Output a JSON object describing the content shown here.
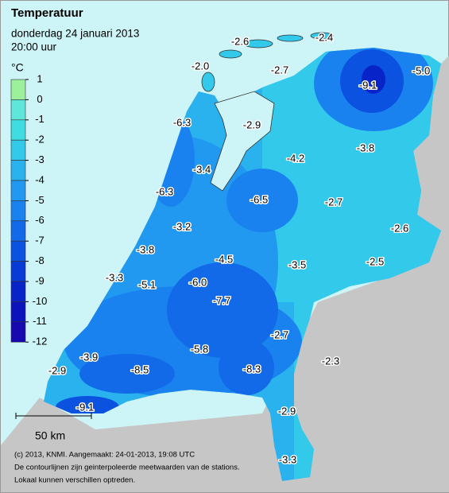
{
  "header": {
    "title": "Temperatuur",
    "date": "donderdag 24 januari 2013",
    "time": "20:00 uur"
  },
  "legend": {
    "unit": "°C",
    "ticks": [
      "1",
      "0",
      "-1",
      "-2",
      "-3",
      "-4",
      "-5",
      "-6",
      "-7",
      "-8",
      "-9",
      "-10",
      "-11",
      "-12"
    ],
    "colors": [
      "#9cf09c",
      "#5fe6da",
      "#3fdde2",
      "#32c9ea",
      "#2ab2ee",
      "#2299f0",
      "#1a82ef",
      "#126ae8",
      "#0c52e0",
      "#083ad6",
      "#0824c8",
      "#0c12bc",
      "#1808b0"
    ]
  },
  "stations": [
    "-2.6",
    "-2.4",
    "-2.0",
    "-2.7",
    "-9.1",
    "-5.0",
    "-6.3",
    "-2.9",
    "-3.8",
    "-4.2",
    "-3.4",
    "-6.3",
    "-6.5",
    "-2.7",
    "-2.6",
    "-3.2",
    "-3.8",
    "-4.5",
    "-2.5",
    "-3.5",
    "-3.3",
    "-5.1",
    "-6.0",
    "-7.7",
    "-2.7",
    "-3.9",
    "-5.8",
    "-2.3",
    "-8.3",
    "-2.9",
    "-8.5",
    "-9.1",
    "-2.9",
    "-3.3"
  ],
  "scale_bar": "50 km",
  "footer": [
    "(c) 2013, KNMI. Aangemaakt: 24-01-2013, 19:08 UTC",
    "De contourlijnen zijn geinterpoleerde meetwaarden van de stations.",
    "Lokaal kunnen verschillen optreden."
  ]
}
